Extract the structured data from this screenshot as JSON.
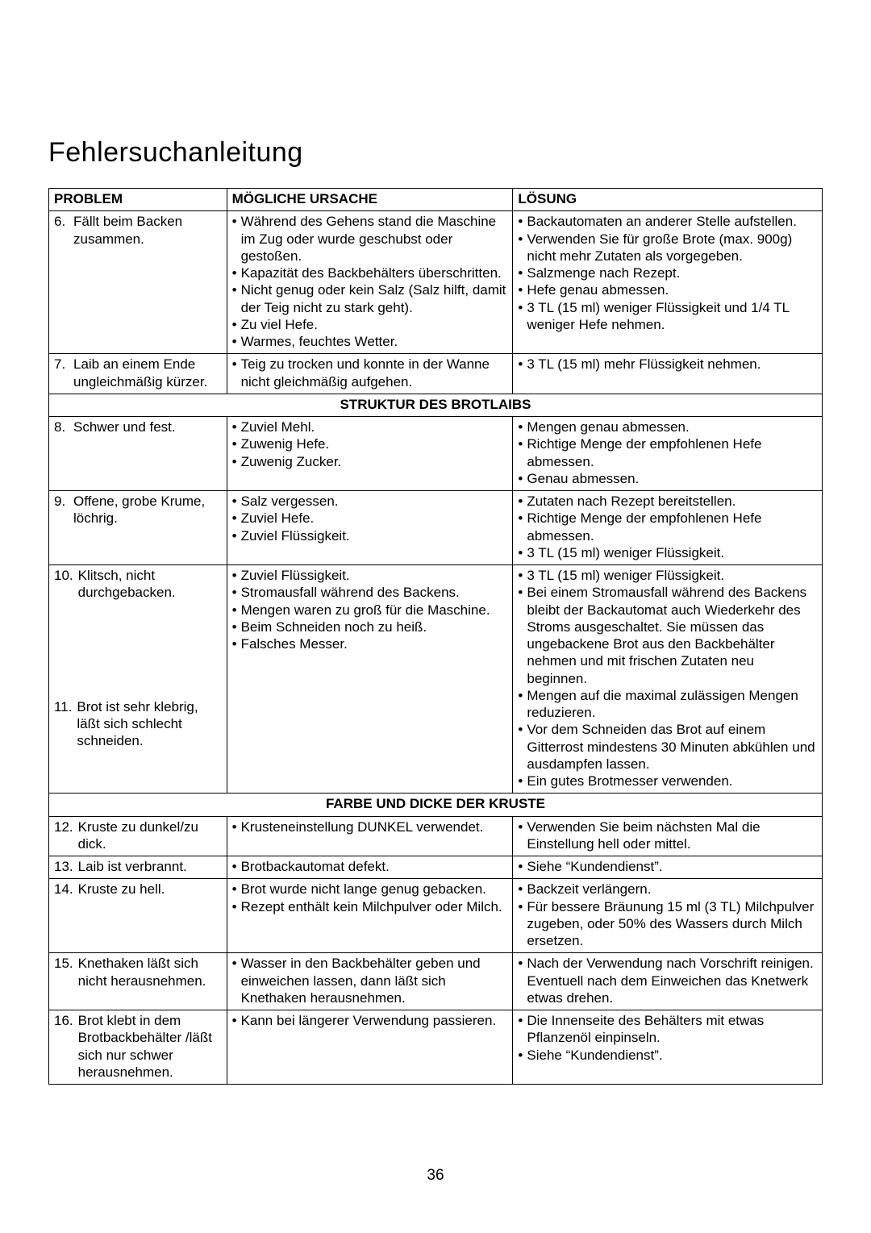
{
  "page_title": "Fehlersuchanleitung",
  "page_number": "36",
  "headers": {
    "problem": "PROBLEM",
    "cause": "MÖGLICHE URSACHE",
    "solution": "LÖSUNG"
  },
  "sections": [
    {
      "title": null,
      "rows": [
        {
          "num": "6.",
          "problem": "Fällt beim Backen zusammen.",
          "cause": [
            "Während des Gehens stand die Maschine im Zug oder wurde geschubst oder gestoßen.",
            "Kapazität des Backbehälters überschritten.",
            "Nicht genug oder kein Salz (Salz hilft, damit der Teig nicht zu stark geht).",
            "Zu viel Hefe.",
            "Warmes, feuchtes Wetter."
          ],
          "solution": [
            "Backautomaten an anderer Stelle aufstellen.",
            "Verwenden Sie für große Brote (max. 900g) nicht mehr Zutaten als vorgegeben.",
            "Salzmenge nach Rezept.",
            "Hefe genau abmessen.",
            "3 TL (15 ml) weniger Flüssigkeit und 1/4 TL weniger Hefe nehmen."
          ]
        },
        {
          "num": "7.",
          "problem": "Laib an einem Ende ungleichmäßig kürzer.",
          "cause": [
            "Teig zu trocken und konnte in der Wanne nicht gleichmäßig aufgehen."
          ],
          "solution": [
            "3 TL (15 ml) mehr Flüssigkeit nehmen."
          ]
        }
      ]
    },
    {
      "title": "STRUKTUR DES BROTLAIBS",
      "rows": [
        {
          "num": "8.",
          "problem": "Schwer und fest.",
          "cause": [
            "Zuviel Mehl.",
            "Zuwenig Hefe.",
            "Zuwenig Zucker."
          ],
          "solution": [
            "Mengen genau abmessen.",
            "Richtige Menge der empfohlenen Hefe abmessen.",
            "Genau abmessen."
          ]
        },
        {
          "num": "9.",
          "problem": "Offene, grobe Krume, löchrig.",
          "cause": [
            "Salz vergessen.",
            "Zuviel Hefe.",
            "Zuviel Flüssigkeit."
          ],
          "solution": [
            "Zutaten nach Rezept bereitstellen.",
            "Richtige Menge der empfohlenen Hefe abmessen.",
            "3 TL (15 ml) weniger Flüssigkeit."
          ]
        },
        {
          "num": "10.",
          "problem": "Klitsch, nicht durchgebacken.",
          "cause": [
            "Zuviel Flüssigkeit.",
            "Stromausfall während des Backens.",
            "Mengen waren zu groß für die Maschine."
          ],
          "solution": [
            "3 TL (15 ml) weniger Flüssigkeit.",
            "Bei einem Stromausfall während des Backens bleibt der Backautomat auch Wiederkehr des Stroms ausgeschaltet. Sie müssen das ungebackene Brot aus den Backbehälter nehmen und mit frischen Zutaten neu beginnen.",
            "Mengen auf die maximal zulässigen Mengen reduzieren."
          ],
          "merge_next": true
        },
        {
          "num": "11.",
          "problem": "Brot ist sehr klebrig, läßt sich schlecht schneiden.",
          "cause": [
            "Beim Schneiden noch zu heiß.",
            "Falsches Messer."
          ],
          "solution": [
            "Vor dem Schneiden das Brot auf einem Gitterrost mindestens 30 Minuten abkühlen und ausdampfen lassen.",
            "Ein gutes Brotmesser verwenden."
          ]
        }
      ]
    },
    {
      "title": "FARBE UND DICKE DER KRUSTE",
      "rows": [
        {
          "num": "12.",
          "problem": "Kruste zu dunkel/zu dick.",
          "cause": [
            "Krusteneinstellung DUNKEL verwendet."
          ],
          "solution": [
            "Verwenden Sie beim nächsten Mal die Einstellung hell oder mittel."
          ]
        },
        {
          "num": "13.",
          "problem": "Laib ist verbrannt.",
          "cause": [
            "Brotbackautomat defekt."
          ],
          "solution": [
            "Siehe “Kundendienst”."
          ]
        },
        {
          "num": "14.",
          "problem": "Kruste zu hell.",
          "cause": [
            "Brot wurde nicht lange genug gebacken.",
            "Rezept enthält kein Milchpulver oder Milch."
          ],
          "solution": [
            "Backzeit verlängern.",
            "Für bessere Bräunung 15 ml (3 TL) Milchpulver zugeben, oder 50% des Wassers durch Milch ersetzen."
          ]
        },
        {
          "num": "15.",
          "problem": "Knethaken läßt sich nicht herausnehmen.",
          "cause": [
            "Wasser in den Backbehälter geben und einweichen lassen, dann läßt sich Knethaken herausnehmen."
          ],
          "solution": [
            "Nach der Verwendung nach Vorschrift reinigen. Eventuell nach dem Einweichen das Knetwerk etwas drehen."
          ]
        },
        {
          "num": "16.",
          "problem": "Brot klebt in dem Brotbackbehälter /läßt sich nur schwer herausnehmen.",
          "cause": [
            "Kann bei längerer Verwendung passieren."
          ],
          "solution": [
            "Die Innenseite des Behälters mit etwas Pflanzenöl einpinseln.",
            "Siehe “Kundendienst”."
          ]
        }
      ]
    }
  ]
}
